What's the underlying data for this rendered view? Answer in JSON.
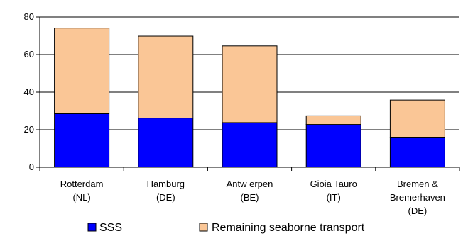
{
  "chart_data": {
    "type": "bar",
    "stacked": true,
    "categories": [
      [
        "Rotterdam",
        "(NL)"
      ],
      [
        "Hamburg",
        "(DE)"
      ],
      [
        "Antw erpen",
        "(BE)"
      ],
      [
        "Gioia Tauro",
        "(IT)"
      ],
      [
        "Bremen &",
        "Bremerhaven",
        "(DE)"
      ]
    ],
    "series": [
      {
        "name": "SSS",
        "color": "#0000ff",
        "values": [
          28.5,
          26.2,
          23.8,
          22.8,
          15.7
        ]
      },
      {
        "name": "Remaining seaborne transport",
        "color": "#fac696",
        "values": [
          45.6,
          43.6,
          40.8,
          4.6,
          20.1
        ]
      }
    ],
    "ylim": [
      0,
      80
    ],
    "yticks": [
      0,
      20,
      40,
      60,
      80
    ],
    "ytick_labels": [
      "0",
      "20",
      "40",
      "60",
      "80"
    ],
    "grid": true,
    "legend_position": "bottom",
    "title": "",
    "xlabel": "",
    "ylabel": ""
  }
}
